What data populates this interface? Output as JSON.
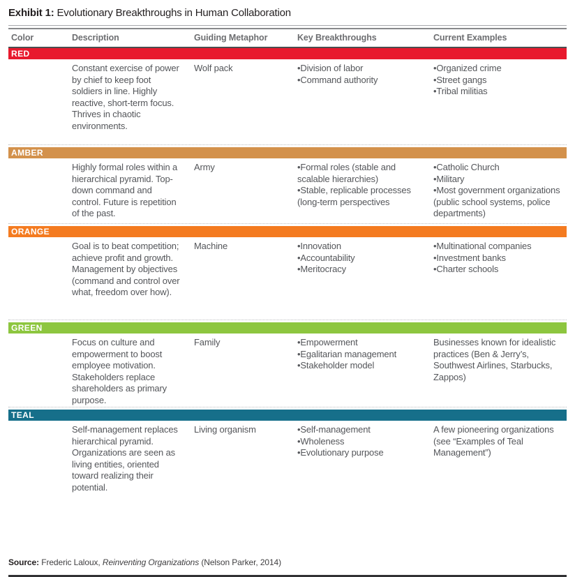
{
  "title": {
    "label": "Exhibit 1:",
    "text": " Evolutionary Breakthroughs in Human Collaboration"
  },
  "table": {
    "headers": [
      "Color",
      "Description",
      "Guiding Metaphor",
      "Key Breakthroughs",
      "Current Examples"
    ],
    "sections": [
      {
        "name": "RED",
        "color": "#e8192d",
        "description": "Constant exercise of power by chief to keep foot soldiers in line. Highly reactive, short-term focus. Thrives in chaotic environments.",
        "metaphor": "Wolf pack",
        "breakthroughs": [
          "Division of labor",
          "Command authority"
        ],
        "examples": {
          "bulleted": true,
          "items": [
            "Organized crime",
            "Street gangs",
            "Tribal militias"
          ]
        }
      },
      {
        "name": "AMBER",
        "color": "#d3914b",
        "description": "Highly formal roles within a hierarchical pyramid. Top-down command and control. Future is repetition of the past.",
        "metaphor": "Army",
        "breakthroughs": [
          "Formal roles (stable and scalable hierarchies)",
          "Stable, replicable processes (long-term perspectives"
        ],
        "examples": {
          "bulleted": true,
          "items": [
            "Catholic Church",
            "Military",
            "Most government organizations (public school systems, police departments)"
          ]
        }
      },
      {
        "name": "ORANGE",
        "color": "#f47b20",
        "description": "Goal is to beat competition; achieve profit and growth. Management by objectives (command and control over what, freedom over how).",
        "metaphor": "Machine",
        "breakthroughs": [
          "Innovation",
          "Accountability",
          "Meritocracy"
        ],
        "examples": {
          "bulleted": true,
          "items": [
            "Multinational companies",
            "Investment banks",
            "Charter schools"
          ]
        }
      },
      {
        "name": "GREEN",
        "color": "#8dc63f",
        "description": "Focus on culture and empowerment to boost employee motivation. Stakeholders replace shareholders as primary purpose.",
        "metaphor": "Family",
        "breakthroughs": [
          "Empowerment",
          "Egalitarian management",
          "Stakeholder model"
        ],
        "examples": {
          "bulleted": false,
          "text": "Businesses known for idealistic practices (Ben & Jerry’s, Southwest Airlines, Starbucks, Zappos)"
        }
      },
      {
        "name": "TEAL",
        "color": "#166f8a",
        "description": "Self-management replaces hierarchical pyramid. Organizations are seen as living entities, oriented toward realizing their potential.",
        "metaphor": "Living organism",
        "breakthroughs": [
          "Self-management",
          "Wholeness",
          "Evolutionary purpose"
        ],
        "examples": {
          "bulleted": false,
          "text": "A few pioneering organizations (see “Examples of Teal Management”)"
        }
      }
    ]
  },
  "source": {
    "label": "Source:",
    "pre": " Frederic Laloux, ",
    "book": "Reinventing Organizations",
    "post": " (Nelson Parker, 2014)"
  }
}
